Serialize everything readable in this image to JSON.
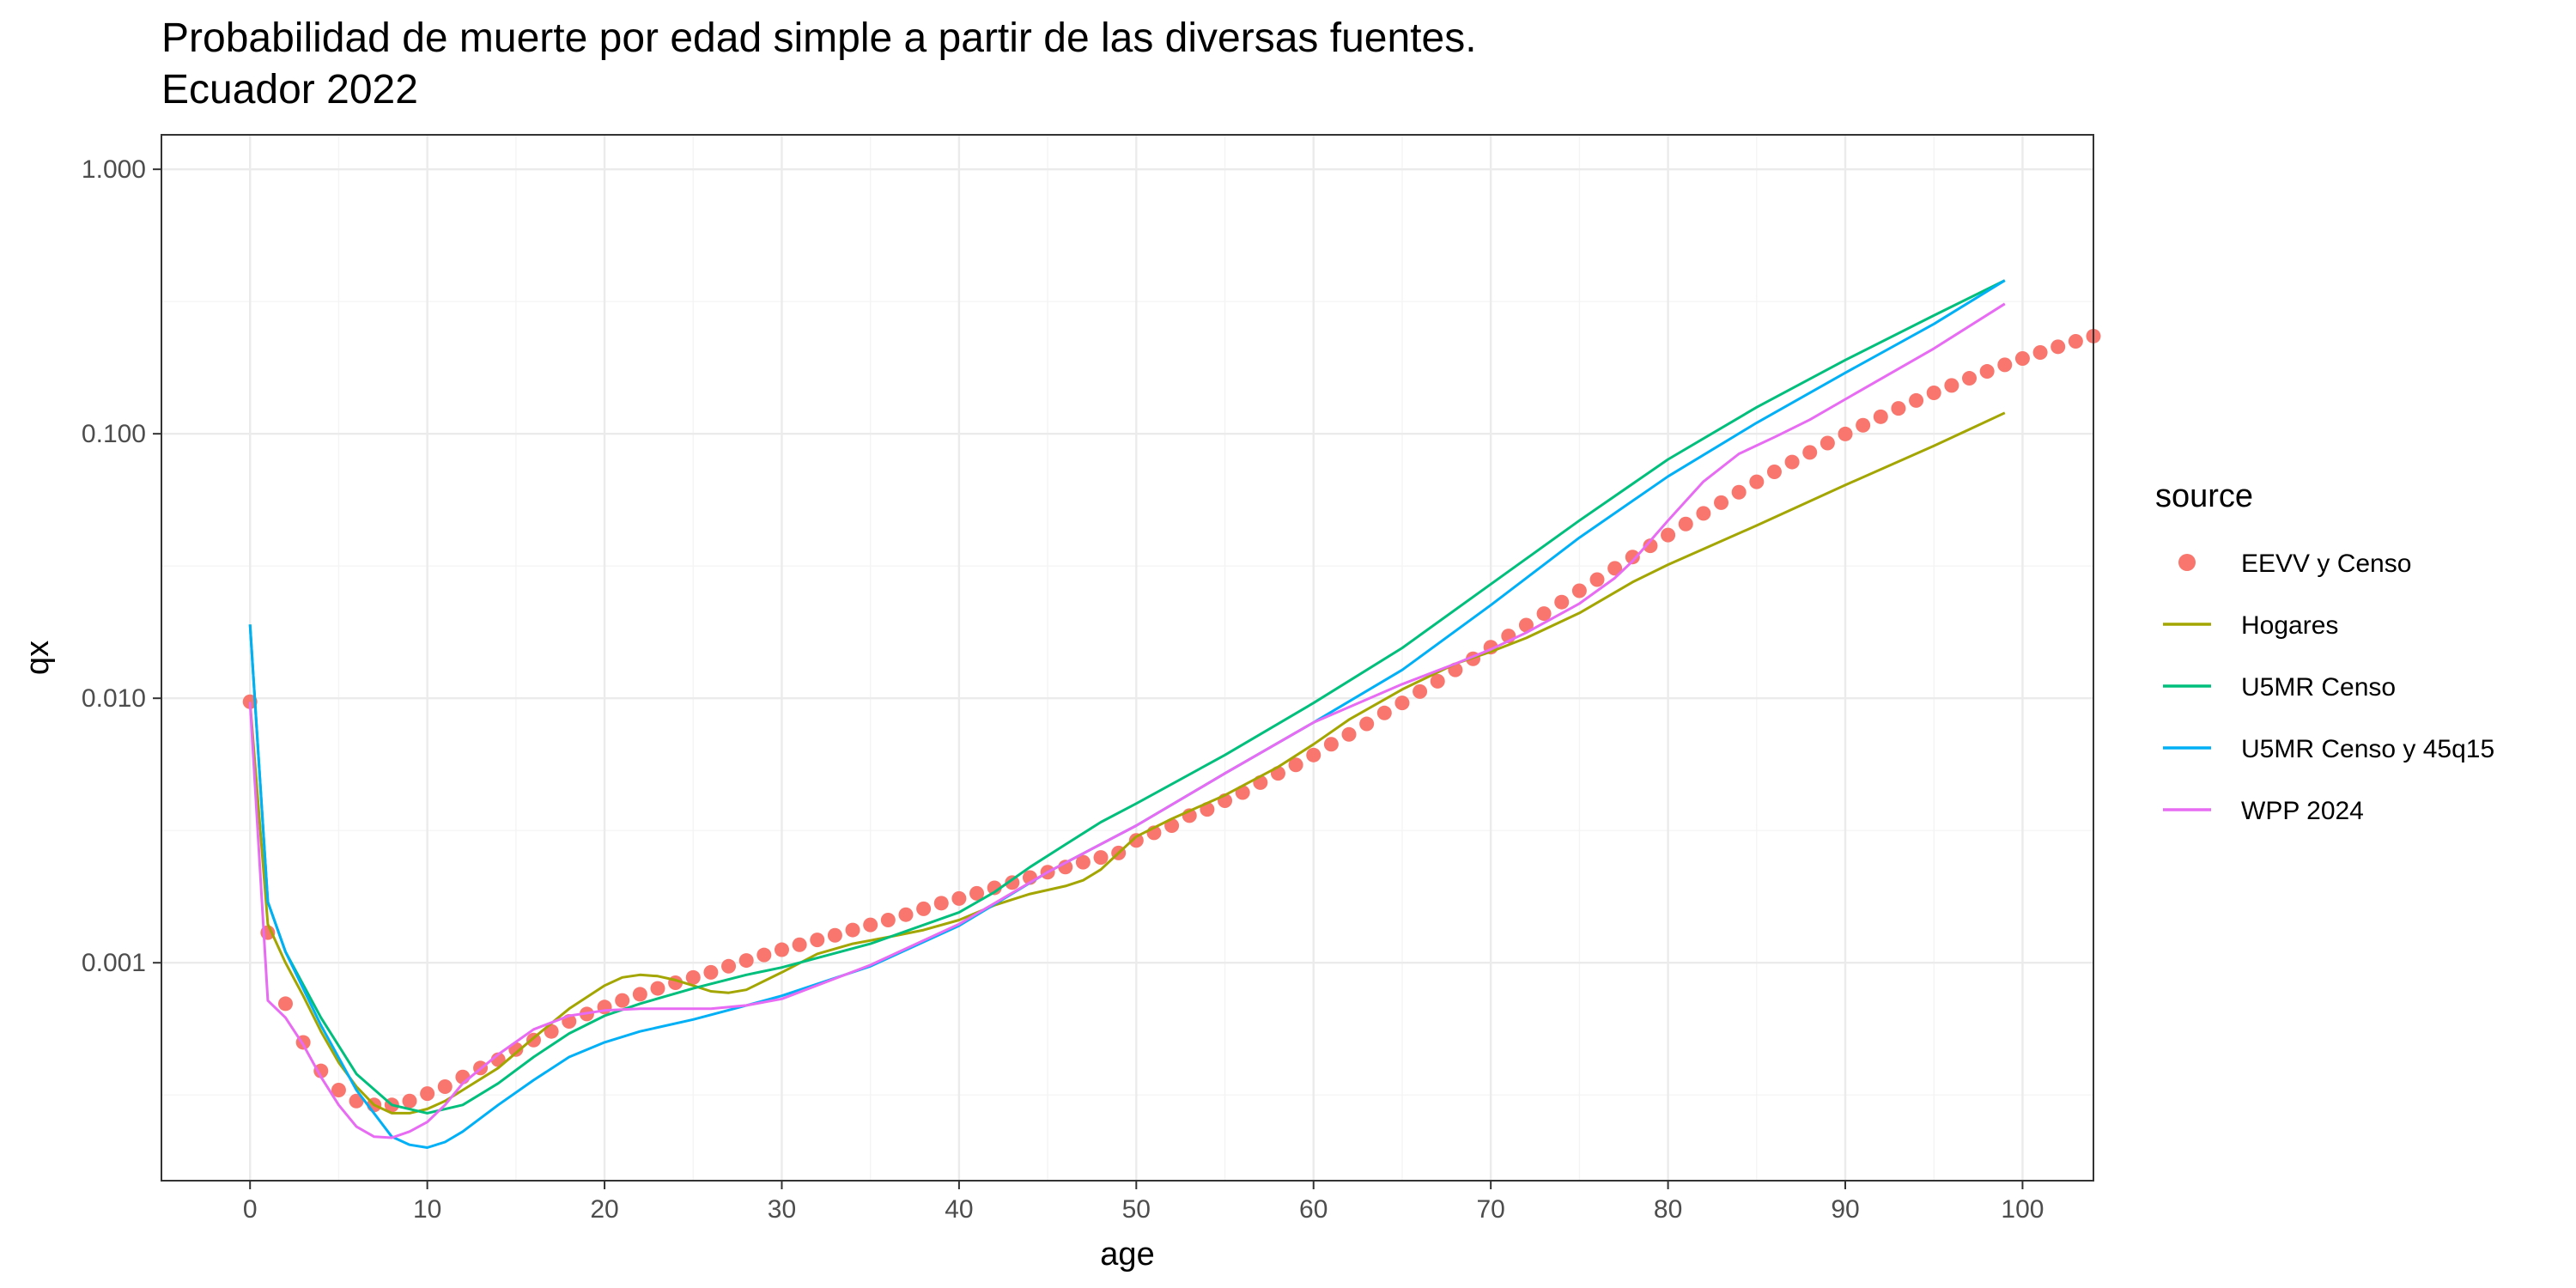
{
  "chart_data": {
    "type": "line",
    "title": "Probabilidad de muerte por edad simple a partir de las diversas fuentes.",
    "subtitle": "Ecuador 2022",
    "xlabel": "age",
    "ylabel": "qx",
    "y_scale": "log10",
    "xlim": [
      -5,
      104
    ],
    "ylim": [
      0.00015,
      1.35
    ],
    "x_ticks": [
      0,
      10,
      20,
      30,
      40,
      50,
      60,
      70,
      80,
      90,
      100
    ],
    "x_tick_labels": [
      "0",
      "10",
      "20",
      "30",
      "40",
      "50",
      "60",
      "70",
      "80",
      "90",
      "100"
    ],
    "y_ticks": [
      0.001,
      0.01,
      0.1,
      1
    ],
    "y_tick_labels": [
      "0.001",
      "0.010",
      "0.100",
      "1.000"
    ],
    "grid": true,
    "legend": {
      "title": "source",
      "position": "right"
    },
    "series": [
      {
        "name": "EEVV y Censo",
        "type": "scatter",
        "color": "#F8766D",
        "x_start": 0,
        "x_step": 1,
        "values": [
          0.0097,
          0.0013,
          0.0007,
          0.0005,
          0.00039,
          0.00033,
          0.0003,
          0.00029,
          0.00029,
          0.0003,
          0.00032,
          0.00034,
          0.00037,
          0.0004,
          0.00043,
          0.00047,
          0.00051,
          0.00055,
          0.0006,
          0.00064,
          0.00068,
          0.00072,
          0.00076,
          0.0008,
          0.00084,
          0.00088,
          0.00092,
          0.00097,
          0.00102,
          0.00107,
          0.00112,
          0.00117,
          0.00122,
          0.00127,
          0.00133,
          0.00139,
          0.00145,
          0.00152,
          0.0016,
          0.00168,
          0.00175,
          0.00183,
          0.00192,
          0.00201,
          0.0021,
          0.0022,
          0.0023,
          0.0024,
          0.0025,
          0.0026,
          0.0029,
          0.0031,
          0.0033,
          0.0036,
          0.0038,
          0.0041,
          0.0044,
          0.0048,
          0.0052,
          0.0056,
          0.0061,
          0.0067,
          0.0073,
          0.008,
          0.0088,
          0.0096,
          0.0106,
          0.0116,
          0.0128,
          0.0141,
          0.0156,
          0.0172,
          0.0189,
          0.0209,
          0.0231,
          0.0255,
          0.0281,
          0.031,
          0.0342,
          0.0377,
          0.0414,
          0.0456,
          0.05,
          0.0549,
          0.0601,
          0.0658,
          0.0718,
          0.0782,
          0.085,
          0.0922,
          0.0998,
          0.1077,
          0.116,
          0.1247,
          0.1336,
          0.1428,
          0.1523,
          0.1621,
          0.1721,
          0.1823,
          0.1926,
          0.2029,
          0.2133,
          0.2236,
          0.234
        ]
      },
      {
        "name": "Hogares",
        "type": "line",
        "color": "#A3A500",
        "x": [
          0,
          1,
          2,
          3,
          4,
          5,
          6,
          7,
          8,
          9,
          10,
          11,
          12,
          14,
          16,
          18,
          20,
          21,
          22,
          23,
          24,
          25,
          26,
          27,
          28,
          30,
          32,
          34,
          36,
          38,
          40,
          42,
          44,
          46,
          47,
          48,
          49,
          50,
          52,
          55,
          58,
          60,
          62,
          65,
          68,
          70,
          72,
          75,
          78,
          80,
          85,
          90,
          95,
          99
        ],
        "y": [
          0.0097,
          0.0014,
          0.001,
          0.00075,
          0.00055,
          0.00042,
          0.00034,
          0.00029,
          0.00027,
          0.00027,
          0.00028,
          0.0003,
          0.00033,
          0.0004,
          0.00052,
          0.00067,
          0.00082,
          0.00088,
          0.0009,
          0.00089,
          0.00086,
          0.00082,
          0.00078,
          0.00077,
          0.00079,
          0.00092,
          0.00108,
          0.00118,
          0.00125,
          0.00133,
          0.00145,
          0.00165,
          0.00182,
          0.00195,
          0.00205,
          0.00225,
          0.0026,
          0.003,
          0.0035,
          0.0043,
          0.0055,
          0.0067,
          0.0083,
          0.0108,
          0.0135,
          0.015,
          0.0169,
          0.021,
          0.0275,
          0.032,
          0.045,
          0.064,
          0.09,
          0.12
        ]
      },
      {
        "name": "U5MR Censo",
        "type": "line",
        "color": "#00BF7D",
        "x": [
          0,
          1,
          2,
          4,
          6,
          8,
          10,
          12,
          14,
          16,
          18,
          20,
          22,
          25,
          28,
          30,
          35,
          40,
          42,
          44,
          46,
          48,
          50,
          55,
          60,
          65,
          70,
          75,
          80,
          85,
          90,
          95,
          99
        ],
        "y": [
          0.019,
          0.0017,
          0.0011,
          0.00062,
          0.00038,
          0.00029,
          0.00027,
          0.00029,
          0.00035,
          0.00044,
          0.00054,
          0.00063,
          0.0007,
          0.0008,
          0.0009,
          0.00096,
          0.00118,
          0.00155,
          0.00185,
          0.0023,
          0.0028,
          0.0034,
          0.004,
          0.0061,
          0.0096,
          0.0155,
          0.027,
          0.047,
          0.08,
          0.126,
          0.19,
          0.28,
          0.38
        ]
      },
      {
        "name": "U5MR Censo y 45q15",
        "type": "line",
        "color": "#00B0F6",
        "x": [
          0,
          1,
          2,
          4,
          6,
          8,
          9,
          10,
          11,
          12,
          14,
          16,
          18,
          20,
          22,
          25,
          28,
          30,
          35,
          40,
          45,
          50,
          55,
          60,
          65,
          70,
          75,
          80,
          85,
          90,
          95,
          99
        ],
        "y": [
          0.019,
          0.0017,
          0.0011,
          0.00058,
          0.00033,
          0.00022,
          0.000205,
          0.0002,
          0.00021,
          0.00023,
          0.00029,
          0.00036,
          0.00044,
          0.0005,
          0.00055,
          0.00061,
          0.00069,
          0.00075,
          0.00097,
          0.00138,
          0.0022,
          0.0033,
          0.0052,
          0.0081,
          0.0128,
          0.0225,
          0.0405,
          0.069,
          0.11,
          0.17,
          0.26,
          0.38
        ]
      },
      {
        "name": "WPP 2024",
        "type": "line",
        "color": "#E76BF3",
        "x": [
          0,
          1,
          2,
          3,
          4,
          5,
          6,
          7,
          8,
          9,
          10,
          11,
          12,
          14,
          16,
          18,
          20,
          22,
          24,
          26,
          28,
          30,
          35,
          40,
          45,
          50,
          55,
          60,
          65,
          68,
          70,
          72,
          75,
          77,
          78,
          80,
          82,
          84,
          86,
          88,
          90,
          95,
          99
        ],
        "y": [
          0.0097,
          0.00072,
          0.00062,
          0.00049,
          0.00037,
          0.00029,
          0.00024,
          0.00022,
          0.000218,
          0.00023,
          0.00025,
          0.00029,
          0.00035,
          0.00045,
          0.00056,
          0.00063,
          0.00066,
          0.00067,
          0.00067,
          0.00067,
          0.00069,
          0.00073,
          0.00098,
          0.0014,
          0.0022,
          0.0033,
          0.0052,
          0.0081,
          0.0113,
          0.0135,
          0.0153,
          0.0177,
          0.0228,
          0.0285,
          0.033,
          0.047,
          0.066,
          0.084,
          0.097,
          0.113,
          0.135,
          0.21,
          0.31
        ]
      }
    ]
  }
}
